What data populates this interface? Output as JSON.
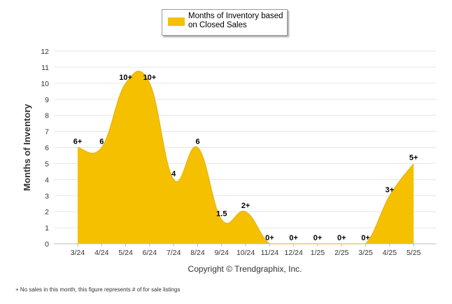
{
  "chart_data": {
    "type": "area",
    "ylabel": "Months of Inventory",
    "xlabel": "",
    "ylim": [
      0,
      12
    ],
    "yticks": [
      0,
      1,
      2,
      3,
      4,
      5,
      6,
      7,
      8,
      9,
      10,
      11,
      12
    ],
    "grid": true,
    "legend_position": "top-center",
    "categories": [
      "3/24",
      "4/24",
      "5/24",
      "6/24",
      "7/24",
      "8/24",
      "9/24",
      "10/24",
      "11/24",
      "12/24",
      "1/25",
      "2/25",
      "3/25",
      "4/25",
      "5/25"
    ],
    "series": [
      {
        "name": "Months of Inventory based on Closed Sales",
        "color": "#f5c000",
        "values": [
          6,
          6,
          10,
          10,
          4,
          6,
          1.5,
          2,
          0,
          0,
          0,
          0,
          0,
          3,
          5
        ],
        "data_labels": [
          "6+",
          "6",
          "10+",
          "10+",
          "4",
          "6",
          "1.5",
          "2+",
          "0+",
          "0+",
          "0+",
          "0+",
          "0+",
          "3+",
          "5+"
        ]
      }
    ]
  },
  "legend": {
    "label": "Months of Inventory based\non Closed Sales",
    "color": "#f5c000"
  },
  "footer": {
    "copyright": "Copyright © Trendgraphix, Inc.",
    "footnote": "+ No sales in this month, this figure represents # of for sale listings"
  }
}
